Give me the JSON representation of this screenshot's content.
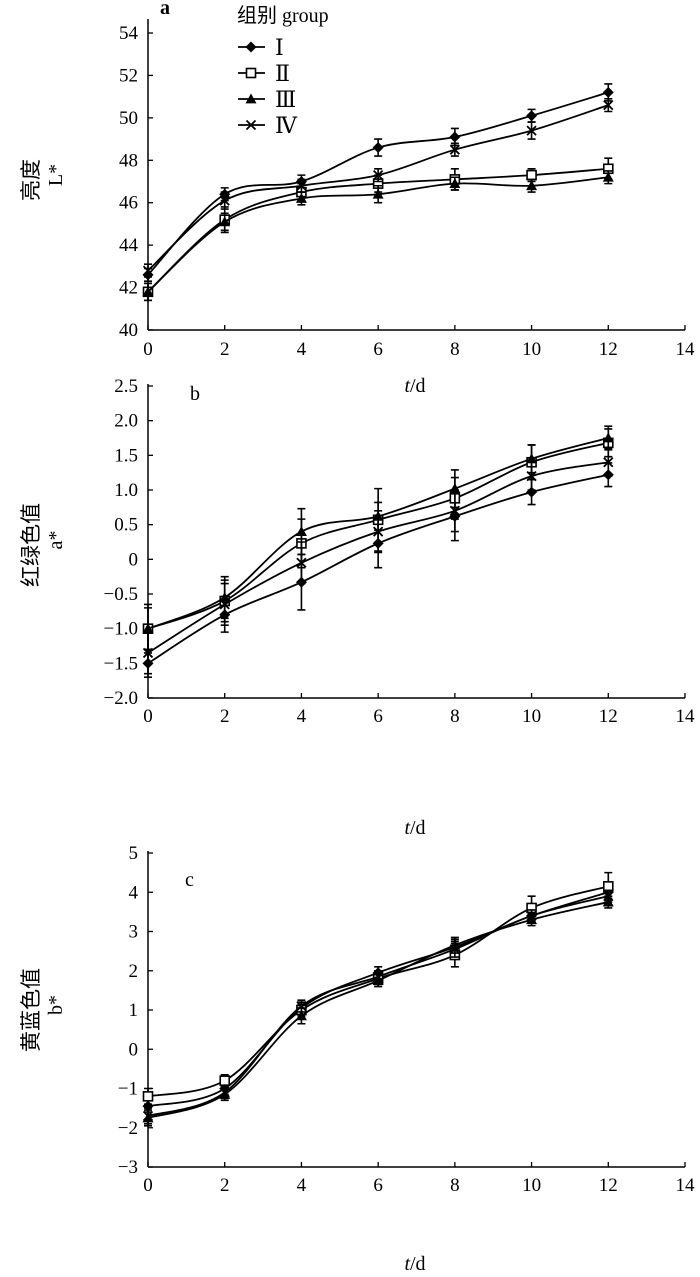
{
  "chart_data": [
    {
      "type": "line",
      "panel_label": "a",
      "ylabel_cn": "亮度",
      "ylabel": "L*",
      "xlabel_italic": "t",
      "xlabel_unit": "/d",
      "x": [
        0,
        2,
        4,
        6,
        8,
        10,
        12
      ],
      "xlim": [
        0,
        14
      ],
      "xticks": [
        "0",
        "2",
        "4",
        "6",
        "8",
        "10",
        "12",
        "14"
      ],
      "ylim": [
        40,
        54
      ],
      "yticks": [
        "40",
        "42",
        "44",
        "46",
        "48",
        "50",
        "52",
        "54"
      ],
      "legend_title": "组别 group",
      "legend_position": "top-left",
      "series": [
        {
          "name": "Ⅰ",
          "marker": "diamond",
          "values": [
            42.6,
            46.4,
            47.0,
            48.6,
            49.1,
            50.1,
            51.2
          ],
          "errors": [
            0.3,
            0.3,
            0.3,
            0.4,
            0.4,
            0.3,
            0.4
          ]
        },
        {
          "name": "Ⅱ",
          "marker": "square-open",
          "values": [
            41.8,
            45.2,
            46.5,
            46.9,
            47.1,
            47.3,
            47.6
          ],
          "errors": [
            0.4,
            0.6,
            0.4,
            0.4,
            0.5,
            0.3,
            0.5
          ]
        },
        {
          "name": "Ⅲ",
          "marker": "triangle",
          "values": [
            41.8,
            45.1,
            46.2,
            46.4,
            46.9,
            46.8,
            47.2
          ],
          "errors": [
            0.4,
            0.4,
            0.3,
            0.4,
            0.3,
            0.3,
            0.3
          ]
        },
        {
          "name": "Ⅳ",
          "marker": "cross",
          "values": [
            42.8,
            46.1,
            46.8,
            47.3,
            48.5,
            49.4,
            50.6
          ],
          "errors": [
            0.3,
            0.4,
            0.3,
            0.3,
            0.3,
            0.4,
            0.3
          ]
        }
      ]
    },
    {
      "type": "line",
      "panel_label": "b",
      "ylabel_cn": "红绿色值",
      "ylabel": "a*",
      "xlabel_italic": "t",
      "xlabel_unit": "/d",
      "x": [
        0,
        2,
        4,
        6,
        8,
        10,
        12
      ],
      "xlim": [
        0,
        14
      ],
      "xticks": [
        "0",
        "2",
        "4",
        "6",
        "8",
        "10",
        "12",
        "14"
      ],
      "ylim": [
        -2.0,
        2.5
      ],
      "yticks": [
        "−2.0",
        "−1.5",
        "−1.0",
        "−0.5",
        "0",
        "0.5",
        "1.0",
        "1.5",
        "2.0",
        "2.5"
      ],
      "series": [
        {
          "name": "Ⅰ",
          "marker": "diamond",
          "values": [
            -1.5,
            -0.8,
            -0.33,
            0.23,
            0.62,
            0.97,
            1.22
          ],
          "errors": [
            0.2,
            0.25,
            0.4,
            0.35,
            0.35,
            0.18,
            0.17
          ]
        },
        {
          "name": "Ⅱ",
          "marker": "square-open",
          "values": [
            -1.0,
            -0.6,
            0.23,
            0.57,
            0.88,
            1.4,
            1.68
          ],
          "errors": [
            0.3,
            0.3,
            0.35,
            0.45,
            0.3,
            0.25,
            0.2
          ]
        },
        {
          "name": "Ⅲ",
          "marker": "triangle",
          "values": [
            -1.0,
            -0.55,
            0.4,
            0.62,
            1.02,
            1.45,
            1.75
          ],
          "errors": [
            0.35,
            0.3,
            0.33,
            0.2,
            0.27,
            0.2,
            0.17
          ]
        },
        {
          "name": "Ⅳ",
          "marker": "cross",
          "values": [
            -1.35,
            -0.65,
            -0.05,
            0.4,
            0.7,
            1.2,
            1.4
          ],
          "errors": [
            0.3,
            0.3,
            0.3,
            0.3,
            0.3,
            0.2,
            0.2
          ]
        }
      ]
    },
    {
      "type": "line",
      "panel_label": "c",
      "ylabel_cn": "黄蓝色值",
      "ylabel": "b*",
      "xlabel_italic": "t",
      "xlabel_unit": "/d",
      "x": [
        0,
        2,
        4,
        6,
        8,
        10,
        12
      ],
      "xlim": [
        0,
        14
      ],
      "xticks": [
        "0",
        "2",
        "4",
        "6",
        "8",
        "10",
        "12",
        "14"
      ],
      "ylim": [
        -3,
        5
      ],
      "yticks": [
        "−3",
        "−2",
        "−1",
        "0",
        "1",
        "2",
        "3",
        "4",
        "5"
      ],
      "series": [
        {
          "name": "Ⅰ",
          "marker": "diamond",
          "values": [
            -1.45,
            -1.0,
            1.05,
            1.95,
            2.6,
            3.4,
            4.0
          ],
          "errors": [
            0.15,
            0.15,
            0.15,
            0.15,
            0.2,
            0.15,
            0.15
          ]
        },
        {
          "name": "Ⅱ",
          "marker": "square-open",
          "values": [
            -1.2,
            -0.8,
            1.0,
            1.8,
            2.4,
            3.6,
            4.15
          ],
          "errors": [
            0.2,
            0.15,
            0.15,
            0.2,
            0.3,
            0.3,
            0.35
          ]
        },
        {
          "name": "Ⅲ",
          "marker": "triangle",
          "values": [
            -1.75,
            -1.15,
            0.85,
            1.75,
            2.65,
            3.3,
            3.75
          ],
          "errors": [
            0.2,
            0.15,
            0.2,
            0.15,
            0.2,
            0.15,
            0.15
          ]
        },
        {
          "name": "Ⅳ",
          "marker": "cross",
          "values": [
            -1.7,
            -1.1,
            1.1,
            1.85,
            2.55,
            3.4,
            3.9
          ],
          "errors": [
            0.2,
            0.15,
            0.15,
            0.15,
            0.2,
            0.15,
            0.15
          ]
        }
      ]
    }
  ]
}
